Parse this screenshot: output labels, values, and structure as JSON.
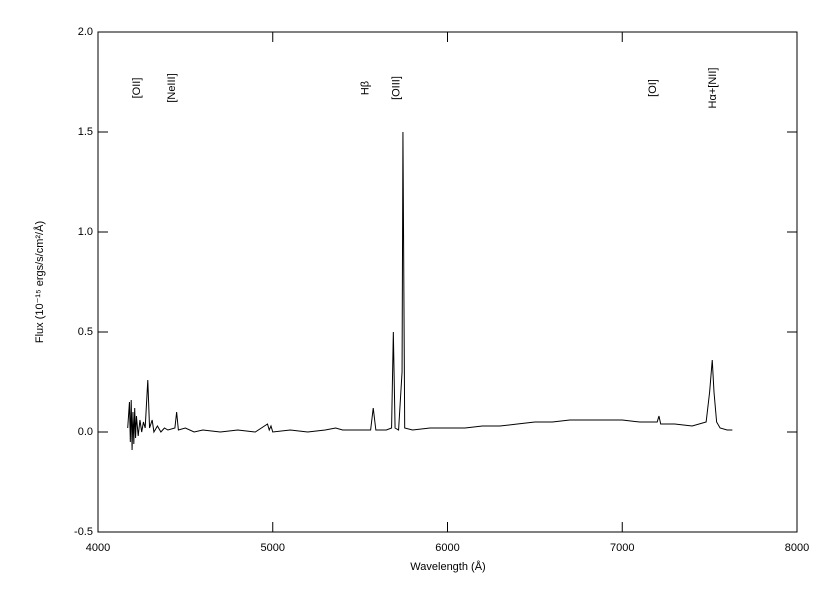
{
  "chart_data": {
    "type": "line",
    "xlabel": "Wavelength (Å)",
    "ylabel": "Flux (10⁻¹⁵ ergs/s/cm²/Å)",
    "xlim": [
      4000,
      8000
    ],
    "xticks": [
      4000,
      5000,
      6000,
      7000,
      8000
    ],
    "ylim": [
      -0.5,
      2.0
    ],
    "yticks": [
      {
        "value": -0.5,
        "label": "-0.5"
      },
      {
        "value": 0,
        "label": "0.0"
      },
      {
        "value": 0.5,
        "label": "0.5"
      },
      {
        "value": 1,
        "label": "1.0"
      },
      {
        "value": 1.5,
        "label": "1.5"
      },
      {
        "value": 2,
        "label": "2.0"
      }
    ],
    "annotations": [
      {
        "text": "[OII]",
        "x": 4223,
        "y": 1.72
      },
      {
        "text": "[NeIII]",
        "x": 4423,
        "y": 1.72
      },
      {
        "text": "Hβ",
        "x": 5531,
        "y": 1.72
      },
      {
        "text": "[OIII]",
        "x": 5709,
        "y": 1.72
      },
      {
        "text": "[OI]",
        "x": 7177,
        "y": 1.72
      },
      {
        "text": "Hα+[NII]",
        "x": 7520,
        "y": 1.72
      }
    ],
    "series": [
      {
        "color": "#000000",
        "x": [
          4170,
          4180,
          4185,
          4190,
          4195,
          4200,
          4205,
          4210,
          4215,
          4220,
          4230,
          4240,
          4250,
          4260,
          4270,
          4285,
          4295,
          4310,
          4320,
          4340,
          4360,
          4380,
          4400,
          4440,
          4450,
          4460,
          4500,
          4550,
          4600,
          4700,
          4800,
          4900,
          4970,
          4980,
          4990,
          5000,
          5100,
          5200,
          5300,
          5360,
          5400,
          5500,
          5560,
          5575,
          5590,
          5650,
          5680,
          5690,
          5700,
          5720,
          5740,
          5745,
          5755,
          5800,
          5900,
          6000,
          6100,
          6200,
          6300,
          6400,
          6500,
          6600,
          6700,
          6800,
          6900,
          7000,
          7100,
          7200,
          7210,
          7220,
          7300,
          7400,
          7480,
          7500,
          7515,
          7525,
          7540,
          7560,
          7600,
          7630
        ],
        "values": [
          0.02,
          0.15,
          -0.05,
          0.16,
          -0.09,
          0.1,
          -0.06,
          0.12,
          -0.03,
          0.08,
          -0.02,
          0.06,
          0.0,
          0.05,
          0.02,
          0.26,
          0.02,
          0.06,
          0.0,
          0.03,
          0.0,
          0.02,
          0.01,
          0.02,
          0.1,
          0.01,
          0.02,
          0.0,
          0.01,
          0.0,
          0.01,
          0.0,
          0.04,
          0.01,
          0.03,
          0.0,
          0.01,
          0.0,
          0.01,
          0.02,
          0.01,
          0.01,
          0.01,
          0.12,
          0.01,
          0.01,
          0.02,
          0.5,
          0.02,
          0.01,
          0.3,
          1.5,
          0.02,
          0.01,
          0.02,
          0.02,
          0.02,
          0.03,
          0.03,
          0.04,
          0.05,
          0.05,
          0.06,
          0.06,
          0.06,
          0.06,
          0.05,
          0.05,
          0.08,
          0.04,
          0.04,
          0.03,
          0.05,
          0.2,
          0.36,
          0.2,
          0.05,
          0.02,
          0.01,
          0.01
        ]
      }
    ]
  }
}
